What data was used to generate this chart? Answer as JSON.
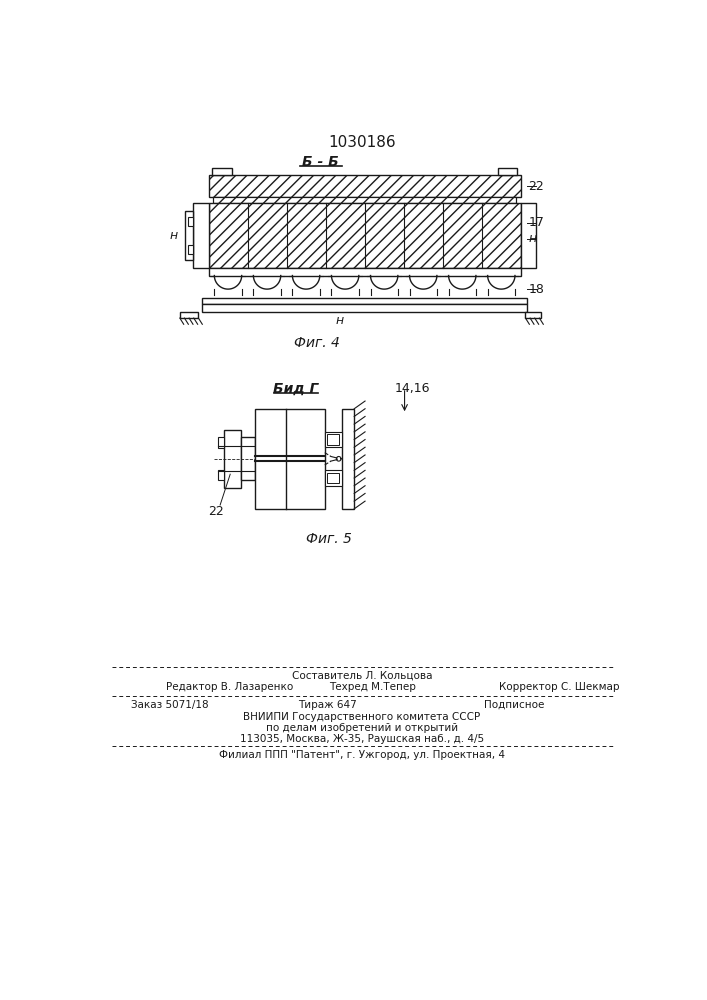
{
  "title": "1030186",
  "bg_color": "#ffffff",
  "line_color": "#1a1a1a",
  "fig4_label": "Фиг. 4",
  "fig5_label": "Фиг. 5",
  "section_label": "Б - Б",
  "view_label": "Бид Г",
  "label_22_fig4": "22",
  "label_17": "17",
  "label_18": "18",
  "label_n_left": "н",
  "label_n_right": "н",
  "label_n_bottom": "н",
  "label_1416": "14,16",
  "label_22_fig5": "22",
  "footer_sestavitel": "Составитель Л. Кольцова",
  "footer_redaktor": "Редактор В. Лазаренко",
  "footer_tehred": "Техред М.Тепер",
  "footer_korrektor": "Корректор С. Шекмар",
  "footer_zakaz": "Заказ 5071/18",
  "footer_tirazh": "Тираж 647",
  "footer_podpisnoe": "Подписное",
  "footer_vniiipi": "ВНИИПИ Государственного комитета СССР",
  "footer_po_delam": "по делам изобретений и открытий",
  "footer_address": "113035, Москва, Ж-35, Раушская наб., д. 4/5",
  "footer_filial": "Филиал ППП \"Патент\", г. Ужгород, ул. Проектная, 4"
}
